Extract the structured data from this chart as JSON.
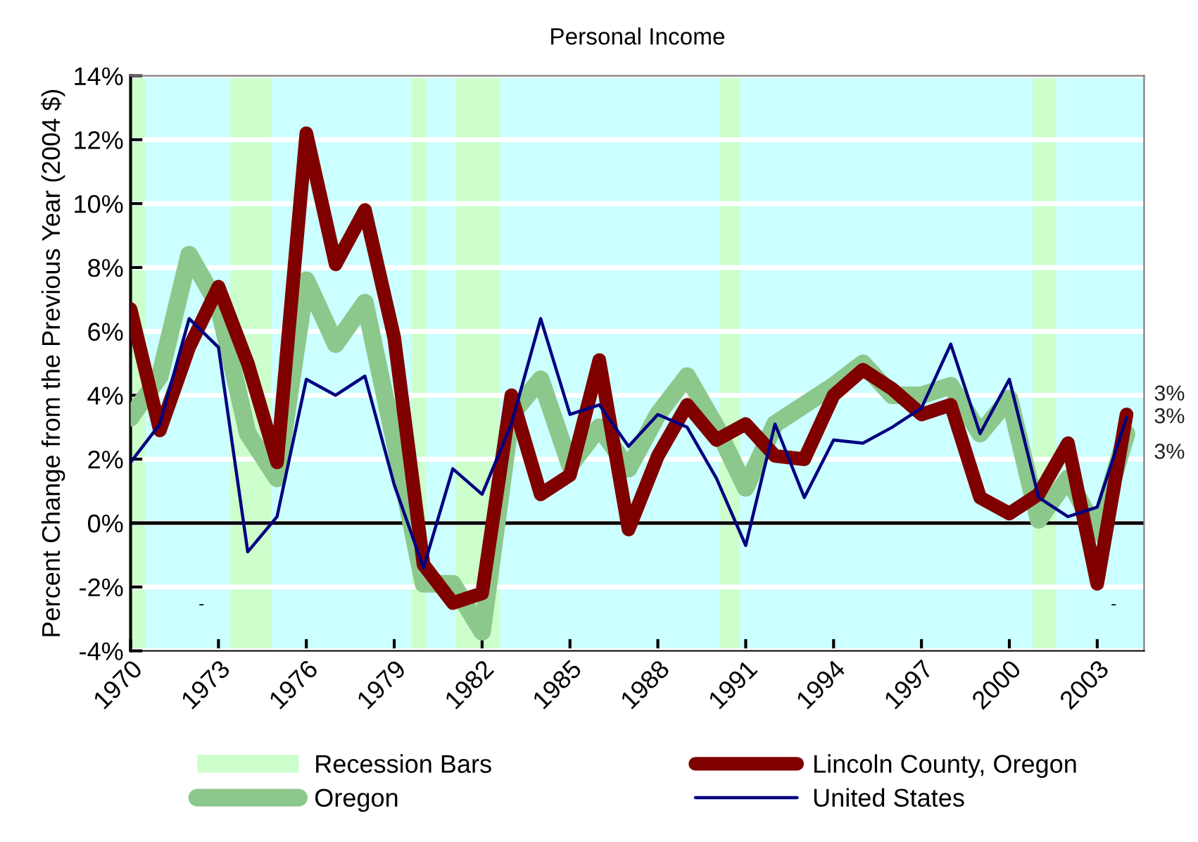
{
  "chart_data": {
    "type": "line",
    "title": "Personal Income",
    "ylabel": "Percent Change from the Previous Year (2004 $)",
    "x": [
      1970,
      1971,
      1972,
      1973,
      1974,
      1975,
      1976,
      1977,
      1978,
      1979,
      1980,
      1981,
      1982,
      1983,
      1984,
      1985,
      1986,
      1987,
      1988,
      1989,
      1990,
      1991,
      1992,
      1993,
      1994,
      1995,
      1996,
      1997,
      1998,
      1999,
      2000,
      2001,
      2002,
      2003,
      2004
    ],
    "series": [
      {
        "name": "Lincoln County, Oregon",
        "color": "#800000",
        "values": [
          6.7,
          2.9,
          5.5,
          7.4,
          5.0,
          1.9,
          12.2,
          8.1,
          9.8,
          5.8,
          -1.3,
          -2.5,
          -2.2,
          4.0,
          0.9,
          1.5,
          5.1,
          -0.2,
          2.1,
          3.7,
          2.6,
          3.1,
          2.1,
          2.0,
          4.0,
          4.8,
          4.2,
          3.4,
          3.7,
          0.8,
          0.3,
          0.9,
          2.5,
          -1.9,
          3.4
        ],
        "value_labels": [
          null,
          null,
          null,
          null,
          null,
          null,
          null,
          null,
          null,
          null,
          null,
          null,
          null,
          null,
          null,
          null,
          null,
          null,
          null,
          null,
          null,
          null,
          null,
          null,
          null,
          null,
          null,
          null,
          null,
          null,
          null,
          null,
          null,
          null,
          "3%"
        ]
      },
      {
        "name": "Oregon",
        "color": "#8cc88c",
        "values": [
          3.3,
          4.6,
          8.4,
          6.8,
          2.8,
          1.4,
          7.6,
          5.6,
          6.9,
          2.6,
          -1.9,
          -1.9,
          -3.4,
          3.4,
          4.5,
          1.8,
          3.0,
          1.7,
          3.4,
          4.6,
          3.0,
          1.1,
          3.1,
          3.7,
          4.3,
          5.0,
          4.0,
          4.0,
          4.3,
          2.8,
          3.9,
          0.1,
          1.4,
          -0.3,
          2.8
        ],
        "value_labels": [
          null,
          null,
          null,
          null,
          null,
          null,
          null,
          null,
          null,
          null,
          null,
          null,
          null,
          null,
          null,
          null,
          null,
          null,
          null,
          null,
          null,
          null,
          null,
          null,
          null,
          null,
          null,
          null,
          null,
          null,
          null,
          null,
          null,
          null,
          "3%"
        ]
      },
      {
        "name": "United States",
        "color": "#000080",
        "values": [
          1.9,
          3.1,
          6.4,
          5.5,
          -0.9,
          0.2,
          4.5,
          4.0,
          4.6,
          1.2,
          -1.4,
          1.7,
          0.9,
          3.1,
          6.4,
          3.4,
          3.7,
          2.4,
          3.4,
          3.0,
          1.4,
          -0.7,
          3.1,
          0.8,
          2.6,
          2.5,
          3.0,
          3.6,
          5.6,
          2.8,
          4.5,
          0.8,
          0.2,
          0.5,
          3.3
        ],
        "value_labels": [
          null,
          null,
          null,
          null,
          null,
          null,
          null,
          null,
          null,
          null,
          null,
          null,
          null,
          null,
          null,
          null,
          null,
          null,
          null,
          null,
          null,
          null,
          null,
          null,
          null,
          null,
          null,
          null,
          null,
          null,
          null,
          null,
          null,
          null,
          "3%"
        ]
      }
    ],
    "bands": [
      {
        "axis": "x",
        "from": 1970,
        "to": 1970.5,
        "label": "Recession Bars",
        "color": "#ccffcc"
      },
      {
        "axis": "x",
        "from": 1973.4,
        "to": 1974.8,
        "color": "#ccffcc"
      },
      {
        "axis": "x",
        "from": 1979.6,
        "to": 1980.1,
        "color": "#ccffcc"
      },
      {
        "axis": "x",
        "from": 1981.1,
        "to": 1982.6,
        "color": "#ccffcc"
      },
      {
        "axis": "x",
        "from": 1990.1,
        "to": 1990.8,
        "color": "#ccffcc"
      },
      {
        "axis": "x",
        "from": 2000.8,
        "to": 2001.6,
        "color": "#ccffcc"
      }
    ],
    "ref_lines": [
      {
        "axis": "y",
        "value": 0,
        "color": "#000000"
      }
    ],
    "annotations": [
      "-",
      "-"
    ],
    "xlim": [
      1970,
      2004.6
    ],
    "xticks": [
      1970,
      1973,
      1976,
      1979,
      1982,
      1985,
      1988,
      1991,
      1994,
      1997,
      2000,
      2003
    ],
    "ylim": [
      -4,
      14
    ],
    "yticks": [
      {
        "value": -4,
        "label": "-4%"
      },
      {
        "value": -2,
        "label": "-2%"
      },
      {
        "value": 0,
        "label": "0%"
      },
      {
        "value": 2,
        "label": "2%"
      },
      {
        "value": 4,
        "label": "4%"
      },
      {
        "value": 6,
        "label": "6%"
      },
      {
        "value": 8,
        "label": "8%"
      },
      {
        "value": 10,
        "label": "10%"
      },
      {
        "value": 12,
        "label": "12%"
      },
      {
        "value": 14,
        "label": "14%"
      }
    ],
    "grid": "y",
    "legend": "bottom",
    "marker": "none",
    "line_style": "solid"
  }
}
